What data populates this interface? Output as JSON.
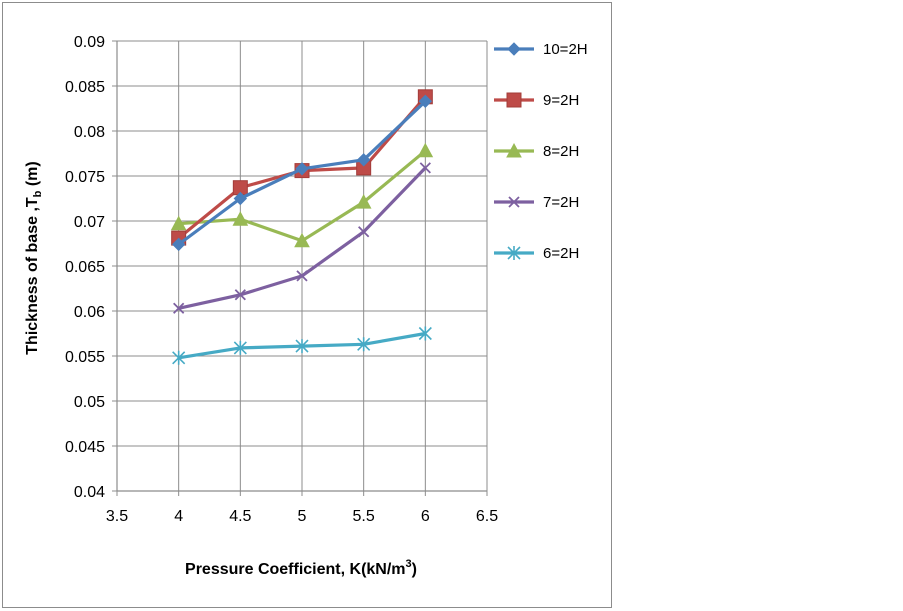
{
  "chart_data": {
    "type": "line",
    "title": "",
    "xlabel": "Pressure Coefficient, K(kN/m",
    "xlabel_sup": "3",
    "xlabel_end": ")",
    "ylabel": "Thickness of base ,T",
    "ylabel_sub": "b",
    "ylabel_end": " (m)",
    "xlim": [
      3.5,
      6.5
    ],
    "ylim": [
      0.04,
      0.09
    ],
    "x_ticks": [
      3.5,
      4,
      4.5,
      5,
      5.5,
      6,
      6.5
    ],
    "x_tick_labels": [
      "3.5",
      "4",
      "4.5",
      "5",
      "5.5",
      "6",
      "6.5"
    ],
    "y_ticks": [
      0.04,
      0.045,
      0.05,
      0.055,
      0.06,
      0.065,
      0.07,
      0.075,
      0.08,
      0.085,
      0.09
    ],
    "y_tick_labels": [
      "0.04",
      "0.045",
      "0.05",
      "0.055",
      "0.06",
      "0.065",
      "0.07",
      "0.075",
      "0.08",
      "0.085",
      "0.09"
    ],
    "grid": true,
    "legend_position": "right",
    "x": [
      4,
      4.5,
      5,
      5.5,
      6
    ],
    "series": [
      {
        "name": "10=2H",
        "color": "#4a7ebb",
        "marker": "diamond",
        "values": [
          0.0674,
          0.0725,
          0.0758,
          0.0768,
          0.0833
        ]
      },
      {
        "name": "9=2H",
        "color": "#be4b48",
        "marker": "square",
        "values": [
          0.0681,
          0.0737,
          0.0756,
          0.0759,
          0.0838
        ]
      },
      {
        "name": "8=2H",
        "color": "#98b954",
        "marker": "triangle",
        "values": [
          0.0697,
          0.0702,
          0.0678,
          0.0721,
          0.0778
        ]
      },
      {
        "name": "7=2H",
        "color": "#7d60a0",
        "marker": "x",
        "values": [
          0.0603,
          0.0618,
          0.0639,
          0.0688,
          0.0759
        ]
      },
      {
        "name": "6=2H",
        "color": "#46aac5",
        "marker": "star",
        "values": [
          0.0548,
          0.0559,
          0.0561,
          0.0563,
          0.0575
        ]
      }
    ]
  }
}
